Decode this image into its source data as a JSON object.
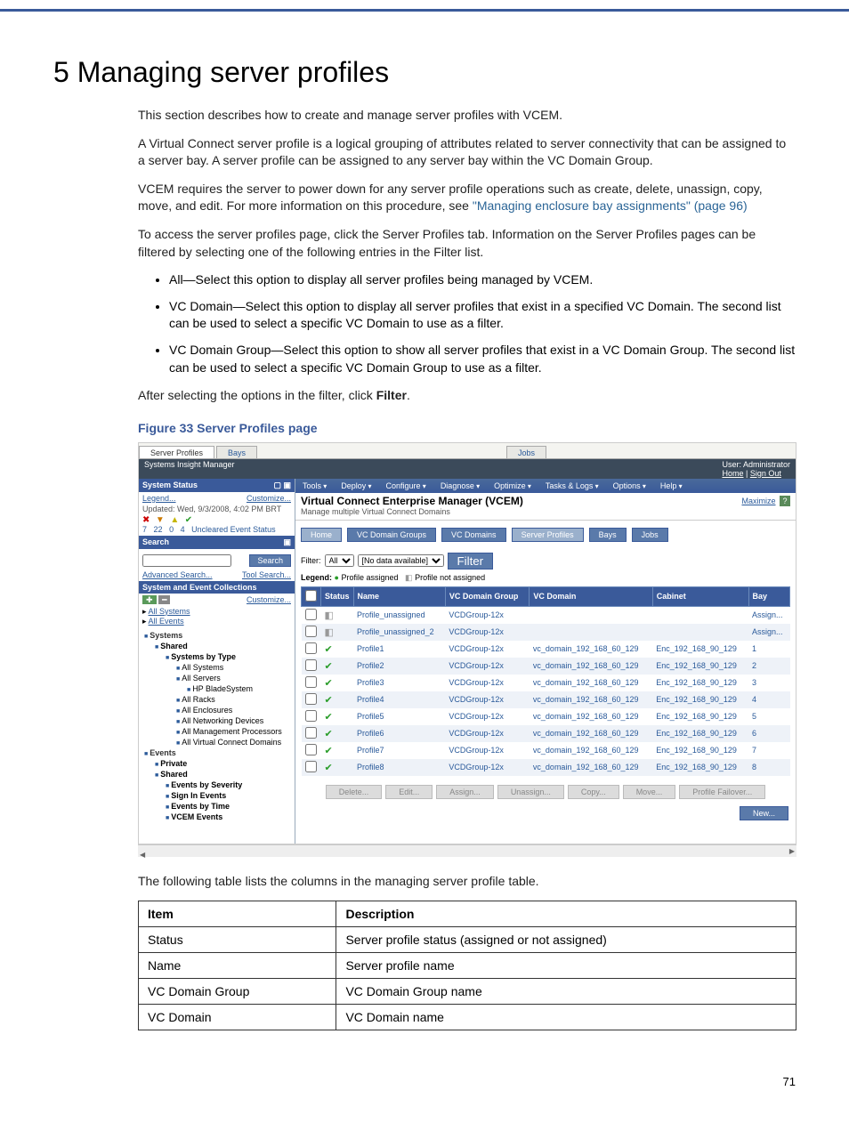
{
  "chapter": {
    "num": "5",
    "title": "Managing server profiles"
  },
  "paras": {
    "p1": "This section describes how to create and manage server profiles with VCEM.",
    "p2": "A Virtual Connect server profile is a logical grouping of attributes related to server connectivity that can be assigned to a server bay. A server profile can be assigned to any server bay within the VC Domain Group.",
    "p3a": "VCEM requires the server to power down for any server profile operations such as create, delete, unassign, copy, move, and edit. For more information on this procedure, see ",
    "p3link": "\"Managing enclosure bay assignments\" (page 96)",
    "p4": "To access the server profiles page, click the Server Profiles tab. Information on the Server Profiles pages can be filtered by selecting one of the following entries in the Filter list.",
    "bul1": "All—Select this option to display all server profiles being managed by VCEM.",
    "bul2": "VC Domain—Select this option to display all server profiles that exist in a specified VC Domain. The second list can be used to select a specific VC Domain to use as a filter.",
    "bul3": "VC Domain Group—Select this option to show all server profiles that exist in a VC Domain Group. The second list can be used to select a specific VC Domain Group to use as a filter.",
    "p5a": "After selecting the options in the filter, click ",
    "p5b": "Filter",
    "p5c": ".",
    "figcap": "Figure 33 Server Profiles page",
    "after_fig": "The following table lists the columns in the managing server profile table."
  },
  "screenshot": {
    "tabs": [
      "Server Profiles",
      "Bays",
      "Jobs"
    ],
    "topbar_left": "Systems Insight Manager",
    "topbar_user": "User: Administrator",
    "topbar_links": [
      "Home",
      "Sign Out"
    ],
    "left": {
      "panel1_title": "System Status",
      "legend": "Legend...",
      "customize": "Customize...",
      "updated": "Updated: Wed, 9/3/2008, 4:02 PM BRT",
      "counts": [
        "7",
        "22",
        "0",
        "4",
        "Uncleared Event Status"
      ],
      "search_title": "Search",
      "search_btn": "Search",
      "adv_search": "Advanced Search...",
      "tool_search": "Tool Search...",
      "panel2_title": "System and Event Collections",
      "customize2": "Customize...",
      "all_systems": "All Systems",
      "all_events": "All Events",
      "tree": [
        {
          "lvl": 1,
          "txt": "Systems",
          "bold": true
        },
        {
          "lvl": 2,
          "txt": "Shared",
          "bold": true
        },
        {
          "lvl": 3,
          "txt": "Systems by Type",
          "bold": true
        },
        {
          "lvl": 4,
          "txt": "All Systems"
        },
        {
          "lvl": 4,
          "txt": "All Servers"
        },
        {
          "lvl": 5,
          "txt": "HP BladeSystem"
        },
        {
          "lvl": 4,
          "txt": "All Racks"
        },
        {
          "lvl": 4,
          "txt": "All Enclosures"
        },
        {
          "lvl": 4,
          "txt": "All Networking Devices"
        },
        {
          "lvl": 4,
          "txt": "All Management Processors"
        },
        {
          "lvl": 4,
          "txt": "All Virtual Connect Domains"
        },
        {
          "lvl": 1,
          "txt": "Events",
          "bold": true
        },
        {
          "lvl": 2,
          "txt": "Private",
          "bold": true
        },
        {
          "lvl": 2,
          "txt": "Shared",
          "bold": true
        },
        {
          "lvl": 3,
          "txt": "Events by Severity",
          "bold": true
        },
        {
          "lvl": 3,
          "txt": "Sign In Events",
          "bold": true
        },
        {
          "lvl": 3,
          "txt": "Events by Time",
          "bold": true
        },
        {
          "lvl": 3,
          "txt": "VCEM Events",
          "bold": true
        }
      ]
    },
    "toolbar": [
      "Tools",
      "Deploy",
      "Configure",
      "Diagnose",
      "Optimize",
      "Tasks & Logs",
      "Options",
      "Help"
    ],
    "vcem_title": "Virtual Connect Enterprise Manager (VCEM)",
    "vcem_sub": "Manage multiple Virtual Connect Domains",
    "maximize": "Maximize",
    "breadcrumbs": [
      {
        "label": "Home",
        "light": true
      },
      {
        "label": "VC Domain Groups",
        "light": false
      },
      {
        "label": "VC Domains",
        "light": false
      },
      {
        "label": "Server Profiles",
        "light": true
      },
      {
        "label": "Bays",
        "light": false
      },
      {
        "label": "Jobs",
        "light": false
      }
    ],
    "filter_label": "Filter:",
    "filter_value": "All",
    "filter_nodata": "[No data available]",
    "filter_btn": "Filter",
    "legend_label": "Legend:",
    "legend_assigned": "Profile assigned",
    "legend_notassigned": "Profile not assigned",
    "grid_headers": [
      "",
      "Status",
      "Name",
      "VC Domain Group",
      "VC Domain",
      "Cabinet",
      "Bay"
    ],
    "grid_rows": [
      {
        "status": "gray",
        "name": "Profile_unassigned",
        "group": "VCDGroup-12x",
        "domain": "",
        "cabinet": "",
        "bay": "Assign..."
      },
      {
        "status": "gray",
        "name": "Profile_unassigned_2",
        "group": "VCDGroup-12x",
        "domain": "",
        "cabinet": "",
        "bay": "Assign..."
      },
      {
        "status": "green",
        "name": "Profile1",
        "group": "VCDGroup-12x",
        "domain": "vc_domain_192_168_60_129",
        "cabinet": "Enc_192_168_90_129",
        "bay": "1"
      },
      {
        "status": "green",
        "name": "Profile2",
        "group": "VCDGroup-12x",
        "domain": "vc_domain_192_168_60_129",
        "cabinet": "Enc_192_168_90_129",
        "bay": "2"
      },
      {
        "status": "green",
        "name": "Profile3",
        "group": "VCDGroup-12x",
        "domain": "vc_domain_192_168_60_129",
        "cabinet": "Enc_192_168_90_129",
        "bay": "3"
      },
      {
        "status": "green",
        "name": "Profile4",
        "group": "VCDGroup-12x",
        "domain": "vc_domain_192_168_60_129",
        "cabinet": "Enc_192_168_90_129",
        "bay": "4"
      },
      {
        "status": "green",
        "name": "Profile5",
        "group": "VCDGroup-12x",
        "domain": "vc_domain_192_168_60_129",
        "cabinet": "Enc_192_168_90_129",
        "bay": "5"
      },
      {
        "status": "green",
        "name": "Profile6",
        "group": "VCDGroup-12x",
        "domain": "vc_domain_192_168_60_129",
        "cabinet": "Enc_192_168_90_129",
        "bay": "6"
      },
      {
        "status": "green",
        "name": "Profile7",
        "group": "VCDGroup-12x",
        "domain": "vc_domain_192_168_60_129",
        "cabinet": "Enc_192_168_90_129",
        "bay": "7"
      },
      {
        "status": "green",
        "name": "Profile8",
        "group": "VCDGroup-12x",
        "domain": "vc_domain_192_168_60_129",
        "cabinet": "Enc_192_168_90_129",
        "bay": "8"
      }
    ],
    "actions": [
      "Delete...",
      "Edit...",
      "Assign...",
      "Unassign...",
      "Copy...",
      "Move...",
      "Profile Failover..."
    ],
    "new_btn": "New..."
  },
  "desc_table": {
    "headers": [
      "Item",
      "Description"
    ],
    "rows": [
      [
        "Status",
        "Server profile status (assigned or not assigned)"
      ],
      [
        "Name",
        "Server profile name"
      ],
      [
        "VC Domain Group",
        "VC Domain Group name"
      ],
      [
        "VC Domain",
        "VC Domain name"
      ]
    ]
  },
  "page_number": "71"
}
